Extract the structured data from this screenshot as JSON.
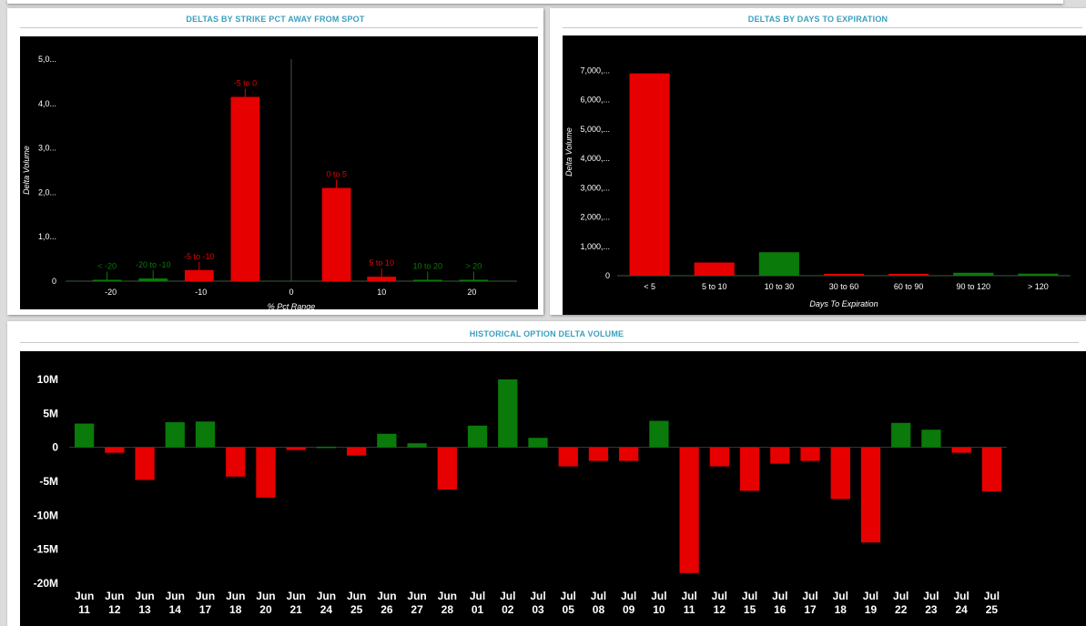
{
  "panels": {
    "strike": {
      "title": "DELTAS BY STRIKE PCT AWAY FROM SPOT"
    },
    "expiry": {
      "title": "DELTAS BY DAYS TO EXPIRATION"
    },
    "history": {
      "title": "HISTORICAL OPTION DELTA VOLUME"
    }
  },
  "colors": {
    "positive": "#0a7a0a",
    "negative": "#e60000",
    "background": "#000000",
    "axis_text": "#ffffff"
  },
  "chart_data": [
    {
      "id": "strike",
      "type": "bar",
      "title": "DELTAS BY STRIKE PCT AWAY FROM SPOT",
      "xlabel": "% Pct Range",
      "ylabel": "Delta Volume",
      "xlim": [
        -25,
        25
      ],
      "ylim": [
        0,
        5000
      ],
      "x_ticks": [
        -20,
        -10,
        0,
        10,
        20
      ],
      "y_ticks": [
        {
          "value": 0,
          "label": "0"
        },
        {
          "value": 1000,
          "label": "1,0..."
        },
        {
          "value": 2000,
          "label": "2,0..."
        },
        {
          "value": 3000,
          "label": "3,0..."
        },
        {
          "value": 4000,
          "label": "4,0..."
        },
        {
          "value": 5000,
          "label": "5,0..."
        }
      ],
      "bars": [
        {
          "label": "< -20",
          "x0": -22,
          "x1": -18.8,
          "value": 15,
          "color": "#0a7a0a"
        },
        {
          "label": "-20 to -10",
          "x0": -16.9,
          "x1": -13.7,
          "value": 60,
          "color": "#0a7a0a"
        },
        {
          "label": "-5 to -10",
          "x0": -11.8,
          "x1": -8.6,
          "value": 250,
          "color": "#e60000"
        },
        {
          "label": "-5 to 0",
          "x0": -6.7,
          "x1": -3.5,
          "value": 4150,
          "color": "#e60000"
        },
        {
          "label": "0 to 5",
          "x0": 3.4,
          "x1": 6.6,
          "value": 2100,
          "color": "#e60000"
        },
        {
          "label": "5 to 10",
          "x0": 8.4,
          "x1": 11.6,
          "value": 100,
          "color": "#e60000"
        },
        {
          "label": "10 to 20",
          "x0": 13.5,
          "x1": 16.7,
          "value": 15,
          "color": "#0a7a0a"
        },
        {
          "label": "> 20",
          "x0": 18.6,
          "x1": 21.8,
          "value": 10,
          "color": "#0a7a0a"
        }
      ]
    },
    {
      "id": "expiry",
      "type": "bar",
      "title": "DELTAS BY DAYS TO EXPIRATION",
      "xlabel": "Days To Expiration",
      "ylabel": "Delta Volume",
      "ylim": [
        0,
        7200
      ],
      "y_ticks": [
        {
          "value": 0,
          "label": "0"
        },
        {
          "value": 1000,
          "label": "1,000,..."
        },
        {
          "value": 2000,
          "label": "2,000,..."
        },
        {
          "value": 3000,
          "label": "3,000,..."
        },
        {
          "value": 4000,
          "label": "4,000,..."
        },
        {
          "value": 5000,
          "label": "5,000,..."
        },
        {
          "value": 6000,
          "label": "6,000,..."
        },
        {
          "value": 7000,
          "label": "7,000,..."
        }
      ],
      "categories": [
        "< 5",
        "5 to 10",
        "10 to 30",
        "30 to 60",
        "60 to 90",
        "90 to 120",
        "> 120"
      ],
      "values": [
        6900,
        450,
        800,
        30,
        50,
        100,
        70
      ],
      "bar_colors": [
        "#e60000",
        "#e60000",
        "#0a7a0a",
        "#e60000",
        "#e60000",
        "#0a7a0a",
        "#0a7a0a"
      ]
    },
    {
      "id": "history",
      "type": "bar",
      "title": "HISTORICAL OPTION DELTA VOLUME",
      "ylim": [
        -20,
        10
      ],
      "y_ticks": [
        {
          "value": 10,
          "label": "10M"
        },
        {
          "value": 5,
          "label": "5M"
        },
        {
          "value": 0,
          "label": "0"
        },
        {
          "value": -5,
          "label": "-5M"
        },
        {
          "value": -10,
          "label": "-10M"
        },
        {
          "value": -15,
          "label": "-15M"
        },
        {
          "value": -20,
          "label": "-20M"
        }
      ],
      "categories": [
        [
          "Jun",
          "11"
        ],
        [
          "Jun",
          "12"
        ],
        [
          "Jun",
          "13"
        ],
        [
          "Jun",
          "14"
        ],
        [
          "Jun",
          "17"
        ],
        [
          "Jun",
          "18"
        ],
        [
          "Jun",
          "20"
        ],
        [
          "Jun",
          "21"
        ],
        [
          "Jun",
          "24"
        ],
        [
          "Jun",
          "25"
        ],
        [
          "Jun",
          "26"
        ],
        [
          "Jun",
          "27"
        ],
        [
          "Jun",
          "28"
        ],
        [
          "Jul",
          "01"
        ],
        [
          "Jul",
          "02"
        ],
        [
          "Jul",
          "03"
        ],
        [
          "Jul",
          "05"
        ],
        [
          "Jul",
          "08"
        ],
        [
          "Jul",
          "09"
        ],
        [
          "Jul",
          "10"
        ],
        [
          "Jul",
          "11"
        ],
        [
          "Jul",
          "12"
        ],
        [
          "Jul",
          "15"
        ],
        [
          "Jul",
          "16"
        ],
        [
          "Jul",
          "17"
        ],
        [
          "Jul",
          "18"
        ],
        [
          "Jul",
          "19"
        ],
        [
          "Jul",
          "22"
        ],
        [
          "Jul",
          "23"
        ],
        [
          "Jul",
          "24"
        ],
        [
          "Jul",
          "25"
        ]
      ],
      "values": [
        3.5,
        -0.8,
        -4.8,
        3.7,
        3.8,
        -4.3,
        -7.4,
        -0.4,
        0.1,
        -1.2,
        2.0,
        0.6,
        -6.2,
        3.2,
        10.0,
        1.4,
        -2.8,
        -2.0,
        -2.0,
        3.9,
        -18.5,
        -2.8,
        -6.4,
        -2.4,
        -2.0,
        -7.6,
        -14.0,
        3.6,
        2.6,
        -0.8,
        -6.5
      ]
    }
  ]
}
